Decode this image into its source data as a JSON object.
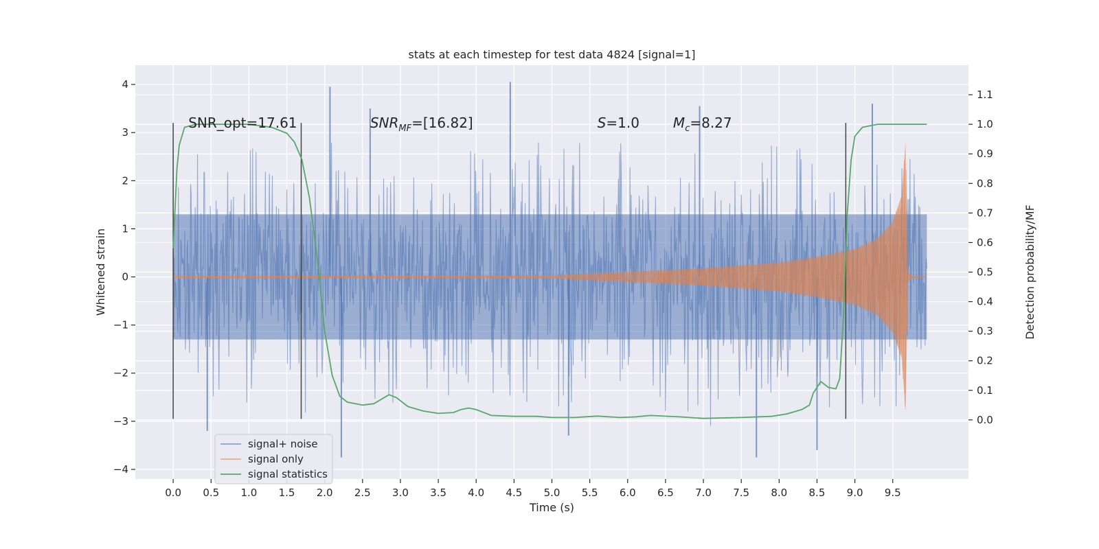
{
  "chart_data": {
    "type": "line",
    "title": "stats at each timestep for test data 4824 [signal=1]",
    "xlabel": "Time (s)",
    "ylabel": "Whitened strain",
    "ylabel_right": "Detection probability/MF",
    "xlim": [
      -0.5,
      10.5
    ],
    "ylim": [
      -4.2,
      4.4
    ],
    "ylim_right": [
      -0.2,
      1.2
    ],
    "x_ticks": [
      0.0,
      0.5,
      1.0,
      1.5,
      2.0,
      2.5,
      3.0,
      3.5,
      4.0,
      4.5,
      5.0,
      5.5,
      6.0,
      6.5,
      7.0,
      7.5,
      8.0,
      8.5,
      9.0,
      9.5
    ],
    "x_tick_labels": [
      "0.0",
      "0.5",
      "1.0",
      "1.5",
      "2.0",
      "2.5",
      "3.0",
      "3.5",
      "4.0",
      "4.5",
      "5.0",
      "5.5",
      "6.0",
      "6.5",
      "7.0",
      "7.5",
      "8.0",
      "8.5",
      "9.0",
      "9.5"
    ],
    "y_ticks": [
      -4,
      -3,
      -2,
      -1,
      0,
      1,
      2,
      3,
      4
    ],
    "y_tick_labels": [
      "−4",
      "−3",
      "−2",
      "−1",
      "0",
      "1",
      "2",
      "3",
      "4"
    ],
    "y_right_ticks": [
      0.0,
      0.1,
      0.2,
      0.3,
      0.4,
      0.5,
      0.6,
      0.7,
      0.8,
      0.9,
      1.0,
      1.1
    ],
    "y_right_tick_labels": [
      "0.0",
      "0.1",
      "0.2",
      "0.3",
      "0.4",
      "0.5",
      "0.6",
      "0.7",
      "0.8",
      "0.9",
      "1.0",
      "1.1"
    ],
    "grid": true,
    "legend_position": "lower-left",
    "series": [
      {
        "name": "signal+ noise",
        "color": "#4c72b0",
        "axis": "left",
        "x_range": [
          0.0,
          9.95
        ],
        "typical_amplitude": 1.3,
        "peak_values": [
          {
            "x": 2.07,
            "y": 3.95
          },
          {
            "x": 2.6,
            "y": 3.5
          },
          {
            "x": 4.45,
            "y": 4.05
          },
          {
            "x": 6.95,
            "y": 3.55
          },
          {
            "x": 9.23,
            "y": 3.6
          },
          {
            "x": 0.45,
            "y": -3.2
          },
          {
            "x": 2.22,
            "y": -3.75
          },
          {
            "x": 5.22,
            "y": -3.3
          },
          {
            "x": 7.7,
            "y": -3.75
          },
          {
            "x": 8.5,
            "y": -3.6
          }
        ]
      },
      {
        "name": "signal only",
        "color": "#dd8452",
        "axis": "left",
        "envelope": [
          {
            "x": 0.0,
            "amp": 0.02
          },
          {
            "x": 5.0,
            "amp": 0.03
          },
          {
            "x": 6.0,
            "amp": 0.1
          },
          {
            "x": 7.0,
            "amp": 0.18
          },
          {
            "x": 8.0,
            "amp": 0.3
          },
          {
            "x": 8.5,
            "amp": 0.42
          },
          {
            "x": 9.0,
            "amp": 0.58
          },
          {
            "x": 9.3,
            "amp": 0.8
          },
          {
            "x": 9.5,
            "amp": 1.15
          },
          {
            "x": 9.62,
            "amp": 1.7
          },
          {
            "x": 9.67,
            "amp": 2.85
          },
          {
            "x": 9.7,
            "amp": 0.12
          },
          {
            "x": 9.75,
            "amp": 0.02
          },
          {
            "x": 9.95,
            "amp": 0.01
          }
        ]
      },
      {
        "name": "signal statistics",
        "color": "#55a868",
        "axis": "right",
        "points": [
          [
            0.0,
            0.58
          ],
          [
            0.05,
            0.85
          ],
          [
            0.08,
            0.93
          ],
          [
            0.15,
            0.99
          ],
          [
            0.3,
            1.0
          ],
          [
            1.0,
            1.0
          ],
          [
            1.3,
            0.99
          ],
          [
            1.5,
            0.97
          ],
          [
            1.6,
            0.94
          ],
          [
            1.7,
            0.88
          ],
          [
            1.8,
            0.75
          ],
          [
            1.9,
            0.55
          ],
          [
            2.0,
            0.3
          ],
          [
            2.1,
            0.15
          ],
          [
            2.2,
            0.08
          ],
          [
            2.3,
            0.06
          ],
          [
            2.5,
            0.05
          ],
          [
            2.65,
            0.055
          ],
          [
            2.75,
            0.07
          ],
          [
            2.85,
            0.085
          ],
          [
            2.95,
            0.075
          ],
          [
            3.1,
            0.045
          ],
          [
            3.3,
            0.03
          ],
          [
            3.5,
            0.022
          ],
          [
            3.7,
            0.025
          ],
          [
            3.8,
            0.035
          ],
          [
            3.9,
            0.04
          ],
          [
            4.0,
            0.035
          ],
          [
            4.2,
            0.015
          ],
          [
            4.5,
            0.012
          ],
          [
            4.8,
            0.012
          ],
          [
            5.0,
            0.008
          ],
          [
            5.3,
            0.008
          ],
          [
            5.6,
            0.013
          ],
          [
            5.9,
            0.008
          ],
          [
            6.1,
            0.01
          ],
          [
            6.3,
            0.015
          ],
          [
            6.7,
            0.01
          ],
          [
            7.0,
            0.005
          ],
          [
            7.5,
            0.008
          ],
          [
            7.9,
            0.012
          ],
          [
            8.1,
            0.02
          ],
          [
            8.3,
            0.035
          ],
          [
            8.4,
            0.05
          ],
          [
            8.45,
            0.09
          ],
          [
            8.55,
            0.13
          ],
          [
            8.65,
            0.11
          ],
          [
            8.75,
            0.105
          ],
          [
            8.8,
            0.14
          ],
          [
            8.85,
            0.35
          ],
          [
            8.9,
            0.7
          ],
          [
            8.95,
            0.88
          ],
          [
            9.0,
            0.96
          ],
          [
            9.1,
            0.99
          ],
          [
            9.3,
            1.0
          ],
          [
            9.95,
            1.0
          ]
        ]
      }
    ],
    "vertical_markers": [
      {
        "x": 0.0,
        "y_from": -2.95,
        "y_to": 3.2
      },
      {
        "x": 1.69,
        "y_from": -2.95,
        "y_to": 3.2
      },
      {
        "x": 8.88,
        "y_from": -2.95,
        "y_to": 3.2
      }
    ],
    "annotations": [
      {
        "x": 0.2,
        "y": 3.2,
        "text": "SNR_opt=17.61"
      },
      {
        "x": 2.6,
        "y": 3.2,
        "italic": "SNR",
        "sub": "MF",
        "rest": "=[16.82]"
      },
      {
        "x": 5.6,
        "y": 3.2,
        "italic": "S",
        "rest": "=1.0"
      },
      {
        "x": 6.6,
        "y": 3.2,
        "italic": "M",
        "sub": "c",
        "rest": "=8.27"
      }
    ]
  },
  "colors": {
    "plot_background": "#eaeaf2",
    "grid": "#ffffff",
    "marker_line": "#444444",
    "text": "#262626"
  }
}
